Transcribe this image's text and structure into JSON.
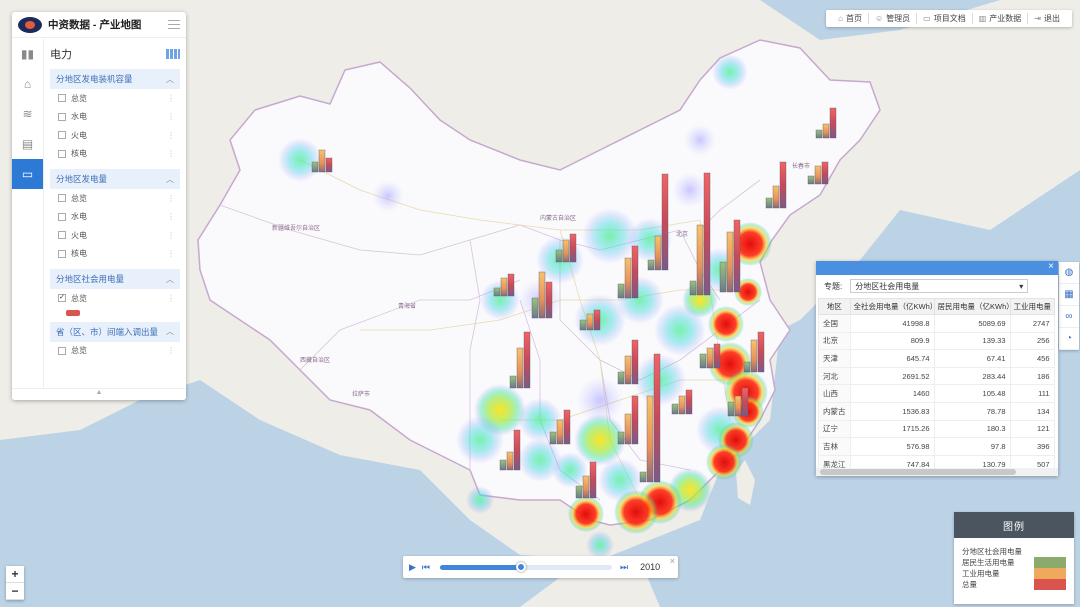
{
  "app": {
    "title": "中资数据 - 产业地图"
  },
  "topnav": [
    {
      "label": "首页",
      "icon": "home-icon"
    },
    {
      "label": "管理员",
      "icon": "user-icon"
    },
    {
      "label": "项目文档",
      "icon": "folder-icon"
    },
    {
      "label": "产业数据",
      "icon": "building-icon"
    },
    {
      "label": "退出",
      "icon": "logout-icon"
    }
  ],
  "sidebar": {
    "category": "电力",
    "groups": [
      {
        "title": "分地区发电装机容量",
        "options": [
          {
            "label": "总览",
            "checked": false
          },
          {
            "label": "水电",
            "checked": false
          },
          {
            "label": "火电",
            "checked": false
          },
          {
            "label": "核电",
            "checked": false
          }
        ]
      },
      {
        "title": "分地区发电量",
        "options": [
          {
            "label": "总览",
            "checked": false
          },
          {
            "label": "水电",
            "checked": false
          },
          {
            "label": "火电",
            "checked": false
          },
          {
            "label": "核电",
            "checked": false
          }
        ]
      },
      {
        "title": "分地区社会用电量",
        "options": [
          {
            "label": "总览",
            "checked": true
          }
        ]
      },
      {
        "title": "省（区、市）间端入调出量",
        "options": [
          {
            "label": "总览",
            "checked": false
          }
        ]
      }
    ]
  },
  "data_table": {
    "topic_label": "专题:",
    "topic_value": "分地区社会用电量",
    "columns": [
      "地区",
      "全社会用电量（亿KWh）",
      "居民用电量（亿KWh）",
      "工业用电量"
    ],
    "rows": [
      [
        "全国",
        "41998.8",
        "5089.69",
        "2747"
      ],
      [
        "北京",
        "809.9",
        "139.33",
        "256"
      ],
      [
        "天津",
        "645.74",
        "67.41",
        "456"
      ],
      [
        "河北",
        "2691.52",
        "283.44",
        "186"
      ],
      [
        "山西",
        "1460",
        "105.48",
        "111"
      ],
      [
        "内蒙古",
        "1536.83",
        "78.78",
        "134"
      ],
      [
        "辽宁",
        "1715.26",
        "180.3",
        "121"
      ],
      [
        "吉林",
        "576.98",
        "97.8",
        "396"
      ],
      [
        "黑龙江",
        "747.84",
        "130.79",
        "507"
      ]
    ]
  },
  "legend": {
    "title": "图例",
    "subtitle": "分地区社会用电量",
    "items": [
      {
        "label": "居民生活用电量",
        "color": "#8aab6b"
      },
      {
        "label": "工业用电量",
        "color": "#f0a85a"
      },
      {
        "label": "总量",
        "color": "#d9534f"
      }
    ]
  },
  "timeline": {
    "year": "2010",
    "progress": 0.47
  },
  "zoom": {
    "in": "+",
    "out": "−"
  },
  "map": {
    "place_labels": [
      "新疆维吾尔自治区",
      "青海省",
      "西藏自治区",
      "内蒙古自治区",
      "拉萨市",
      "长春市",
      "北京"
    ],
    "colors": {
      "sea": "#bcd3e6",
      "land": "#f1efe9",
      "china": "#fbfbfd",
      "border": "#b49ac2"
    }
  }
}
